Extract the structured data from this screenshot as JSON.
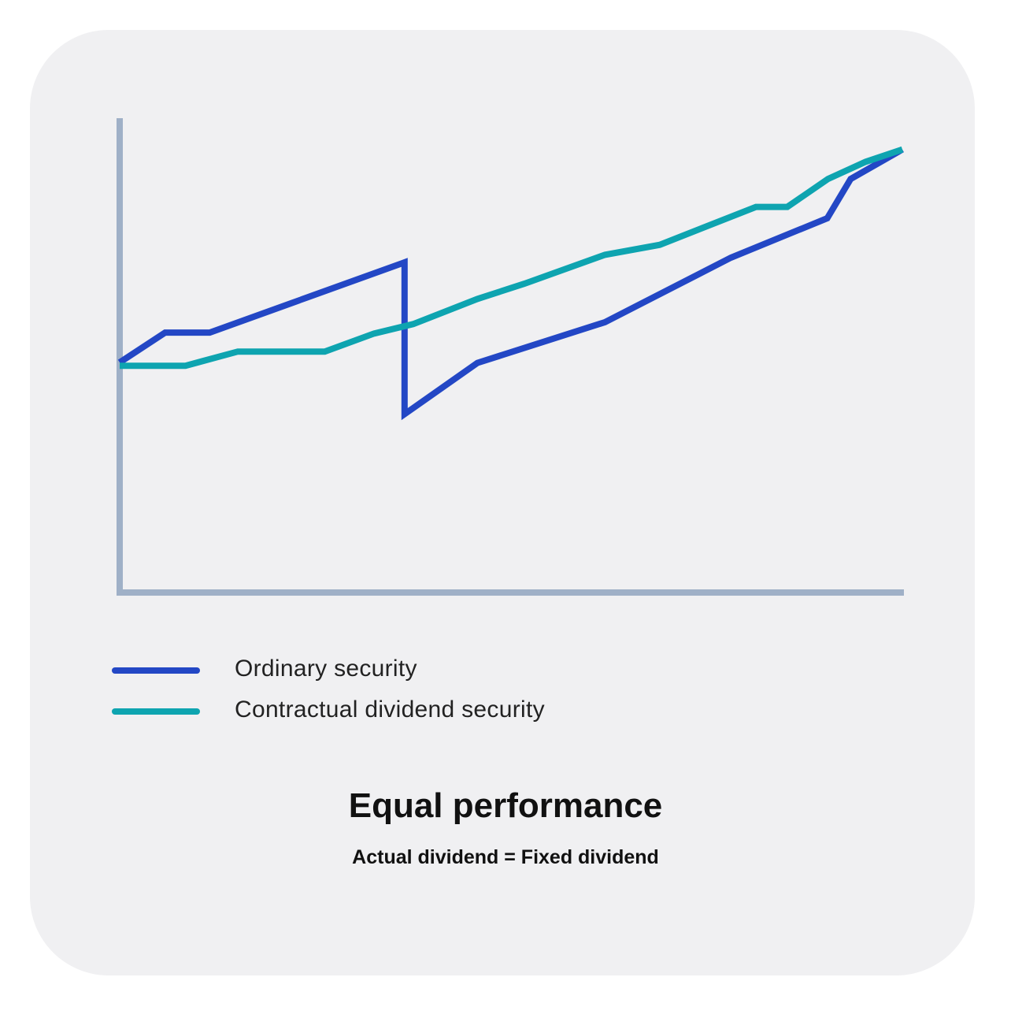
{
  "chart_data": {
    "type": "line",
    "title": "Equal performance",
    "subtitle": "Actual dividend = Fixed dividend",
    "xlabel": "",
    "ylabel": "",
    "xlim": [
      0,
      100
    ],
    "ylim": [
      0,
      100
    ],
    "grid": false,
    "legend_position": "bottom-left",
    "series": [
      {
        "name": "Ordinary security",
        "color": "#2347c5",
        "points": [
          [
            0,
            48.5
          ],
          [
            5.8,
            54.8
          ],
          [
            11.5,
            54.8
          ],
          [
            36.4,
            69.6
          ],
          [
            36.4,
            37.6
          ],
          [
            45.7,
            48.4
          ],
          [
            62.0,
            57.0
          ],
          [
            78.1,
            70.6
          ],
          [
            90.4,
            78.9
          ],
          [
            93.4,
            87.2
          ],
          [
            100,
            93.4
          ]
        ]
      },
      {
        "name": "Contractual dividend security",
        "color": "#0ea4b0",
        "points": [
          [
            0,
            47.8
          ],
          [
            8.4,
            47.8
          ],
          [
            15.1,
            50.8
          ],
          [
            26.2,
            50.8
          ],
          [
            32.5,
            54.6
          ],
          [
            37.5,
            56.6
          ],
          [
            45.7,
            61.9
          ],
          [
            51.7,
            65.1
          ],
          [
            62.0,
            71.2
          ],
          [
            69.0,
            73.3
          ],
          [
            81.3,
            81.3
          ],
          [
            85.3,
            81.3
          ],
          [
            90.5,
            87.2
          ],
          [
            95.3,
            90.8
          ],
          [
            100,
            93.4
          ]
        ]
      }
    ]
  }
}
